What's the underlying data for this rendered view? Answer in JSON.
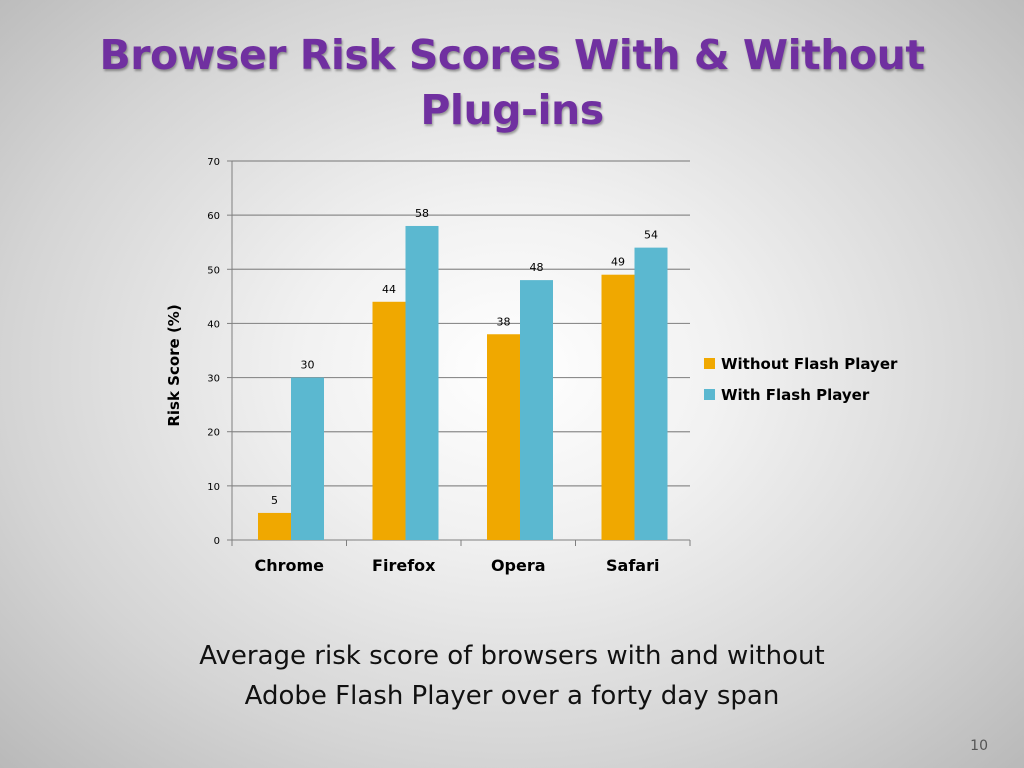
{
  "title_lines": [
    "Browser Risk Scores With & Without",
    "Plug-ins"
  ],
  "caption_lines": [
    "Average risk score of browsers with and without",
    "Adobe Flash Player over a forty day span"
  ],
  "page_number": "10",
  "chart_data": {
    "type": "bar",
    "categories": [
      "Chrome",
      "Firefox",
      "Opera",
      "Safari"
    ],
    "series": [
      {
        "name": "Without Flash Player",
        "color": "#f0a800",
        "values": [
          5,
          44,
          38,
          49
        ],
        "data_labels": [
          "5",
          "44",
          "38",
          "49"
        ]
      },
      {
        "name": "With Flash Player",
        "color": "#5bb8d0",
        "values": [
          30,
          58,
          48,
          54
        ],
        "data_labels": [
          "30",
          "58",
          "48",
          "54"
        ]
      }
    ],
    "ylabel": "Risk Score (%)",
    "xlabel": "",
    "ylim": [
      0,
      70
    ],
    "yticks": [
      0,
      10,
      20,
      30,
      40,
      50,
      60,
      70
    ],
    "grid": true,
    "legend_position": "right"
  }
}
